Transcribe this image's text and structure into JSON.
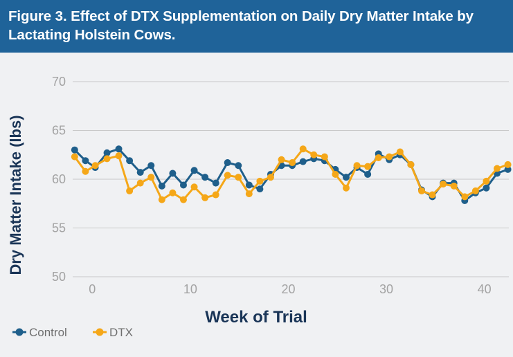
{
  "header": {
    "title": "Figure 3. Effect of DTX Supplementation on Daily Dry Matter Intake by Lactating Holstein Cows."
  },
  "chart_data": {
    "type": "line",
    "title": "Figure 3. Effect of DTX Supplementation on Daily Dry Matter Intake by Lactating Holstein Cows.",
    "xlabel": "Week of Trial",
    "ylabel": "Dry Matter Intake (lbs)",
    "xlim": [
      -2,
      42.5
    ],
    "ylim": [
      50,
      70
    ],
    "xticks": [
      0,
      10,
      20,
      30,
      40
    ],
    "yticks": [
      50,
      55,
      60,
      65,
      70
    ],
    "grid": "horizontal",
    "legend_position": "bottom-left",
    "x": [
      -1.8,
      -0.7,
      0.3,
      1.5,
      2.7,
      3.8,
      4.9,
      6.0,
      7.1,
      8.2,
      9.3,
      10.4,
      11.5,
      12.6,
      13.8,
      14.9,
      16.0,
      17.1,
      18.2,
      19.3,
      20.4,
      21.5,
      22.6,
      23.7,
      24.8,
      25.9,
      27.0,
      28.1,
      29.2,
      30.3,
      31.4,
      32.5,
      33.6,
      34.7,
      35.8,
      36.9,
      38.0,
      39.1,
      40.2,
      41.3,
      42.4
    ],
    "series": [
      {
        "name": "Control",
        "color": "#1f5f8b",
        "values": [
          63.0,
          61.9,
          61.2,
          62.7,
          63.1,
          61.9,
          60.7,
          61.4,
          59.3,
          60.6,
          59.4,
          60.9,
          60.2,
          59.6,
          61.7,
          61.4,
          59.4,
          59.0,
          60.5,
          61.4,
          61.4,
          61.8,
          62.1,
          61.9,
          61.0,
          60.2,
          61.2,
          60.5,
          62.6,
          62.0,
          62.5,
          61.5,
          58.9,
          58.2,
          59.6,
          59.6,
          57.8,
          58.6,
          59.1,
          60.6,
          61.0
        ]
      },
      {
        "name": "DTX",
        "color": "#f5a718",
        "values": [
          62.3,
          60.8,
          61.4,
          62.1,
          62.4,
          58.8,
          59.6,
          60.2,
          57.9,
          58.6,
          57.9,
          59.2,
          58.1,
          58.4,
          60.4,
          60.2,
          58.5,
          59.8,
          60.2,
          62.0,
          61.7,
          63.1,
          62.5,
          62.3,
          60.5,
          59.1,
          61.4,
          61.3,
          62.2,
          62.3,
          62.8,
          61.5,
          58.8,
          58.4,
          59.5,
          59.3,
          58.2,
          58.8,
          59.8,
          61.1,
          61.5
        ]
      }
    ]
  }
}
